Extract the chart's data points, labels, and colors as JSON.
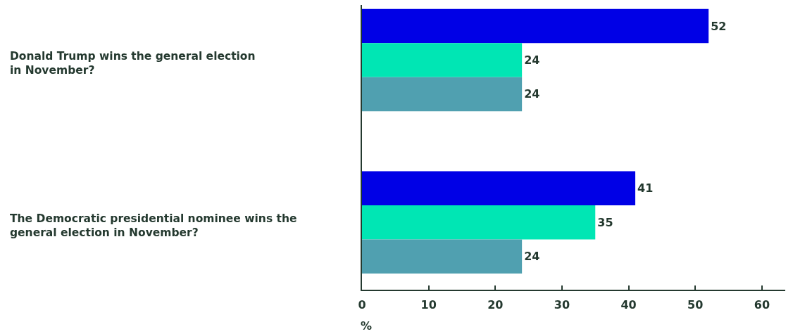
{
  "chart_data": {
    "type": "bar",
    "orientation": "horizontal",
    "categories": [
      "Donald Trump wins the general election\nin November?",
      "The Democratic presidential nominee wins the\ngeneral election in November?"
    ],
    "series": [
      {
        "color": "#0000e6",
        "values": [
          52,
          41
        ]
      },
      {
        "color": "#00e6b4",
        "values": [
          24,
          35
        ]
      },
      {
        "color": "#50a0b0",
        "values": [
          24,
          24
        ]
      }
    ],
    "xlabel": "%",
    "xlim": [
      0,
      63.5
    ],
    "xticks": [
      0,
      10,
      20,
      30,
      40,
      50,
      60
    ],
    "data_labels": true,
    "grid": false
  }
}
